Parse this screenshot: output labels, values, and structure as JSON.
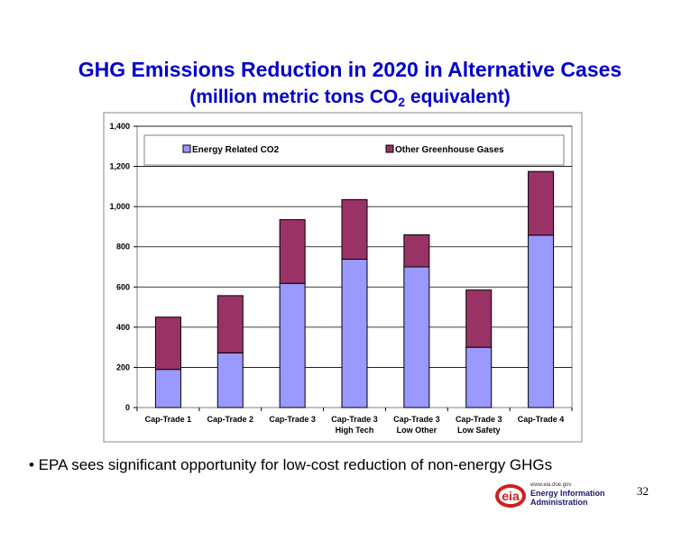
{
  "slide": {
    "title": "GHG Emissions Reduction in 2020 in Alternative Cases",
    "subtitle_pre": "(million metric tons CO",
    "subtitle_sub": "2",
    "subtitle_post": " equivalent)",
    "bullet": "• EPA sees significant opportunity for low-cost reduction of non-energy GHGs",
    "page_number": "32"
  },
  "logo": {
    "url": "www.eia.doe.gov",
    "name_line1": "Energy Information",
    "name_line2": "Administration",
    "mark": "eia",
    "color_red": "#cc2222",
    "color_blue": "#1a1a6e"
  },
  "chart_data": {
    "type": "bar",
    "stacked": true,
    "categories": [
      [
        "Cap-Trade 1"
      ],
      [
        "Cap-Trade 2"
      ],
      [
        "Cap-Trade 3"
      ],
      [
        "Cap-Trade 3",
        "High Tech"
      ],
      [
        "Cap-Trade 3",
        "Low Other"
      ],
      [
        "Cap-Trade 3",
        "Low Safety"
      ],
      [
        "Cap-Trade 4"
      ]
    ],
    "series": [
      {
        "name": "Energy Related CO2",
        "color": "#9999ff",
        "values": [
          190,
          272,
          618,
          738,
          700,
          300,
          858
        ]
      },
      {
        "name": "Other Greenhouse Gases",
        "color": "#993366",
        "values": [
          260,
          285,
          317,
          297,
          160,
          285,
          317
        ]
      }
    ],
    "ylim": [
      0,
      1400
    ],
    "yticks": [
      0,
      200,
      400,
      600,
      800,
      1000,
      1200,
      1400
    ],
    "ytick_labels": [
      "0",
      "200",
      "400",
      "600",
      "800",
      "1,000",
      "1,200",
      "1,400"
    ],
    "grid": true,
    "legend": "top"
  }
}
